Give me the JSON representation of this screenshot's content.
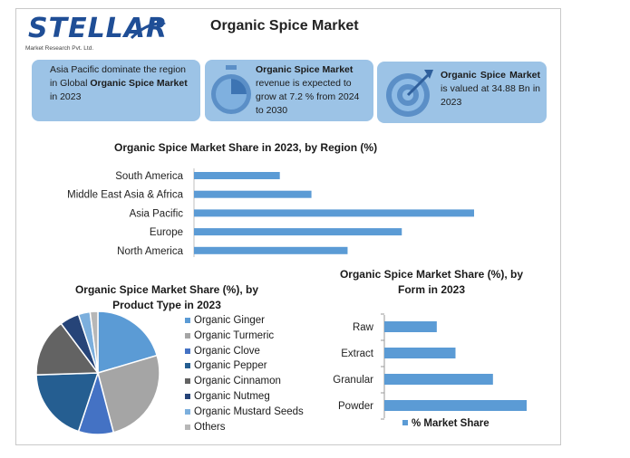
{
  "header": {
    "logo_word": "STELLAR",
    "logo_sub": "Market Research Pvt. Ltd.",
    "title": "Organic Spice Market"
  },
  "cards": [
    {
      "text_parts": [
        "Asia Pacific dominate the region in Global ",
        "Organic Spice Market",
        " in 2023"
      ],
      "icon": ""
    },
    {
      "text_parts": [
        "Organic Spice Market",
        " revenue is expected to grow at 7.2 % from 2024 to 2030"
      ],
      "icon": "stopwatch-icon"
    },
    {
      "text_parts": [
        "Organic Spice Market",
        " is valued at 34.88 Bn in 2023"
      ],
      "icon": "target-icon"
    }
  ],
  "colors": {
    "bar": "#5b9bd5",
    "card_bg": "#9cc3e6",
    "brand": "#1f4e96"
  },
  "chart_data": [
    {
      "type": "bar",
      "orientation": "horizontal",
      "title": "Organic Spice Market Share in 2023, by Region (%)",
      "categories": [
        "South America",
        "Middle East Asia & Africa",
        "Asia Pacific",
        "Europe",
        "North America"
      ],
      "values": [
        9.5,
        13,
        31,
        23,
        17
      ],
      "xlim": [
        0,
        35
      ],
      "grid": false,
      "axis": "hidden"
    },
    {
      "type": "pie",
      "title": "Organic Spice Market Share (%), by Product Type in 2023",
      "legend_position": "right",
      "labels": [
        "Organic Ginger",
        "Organic Turmeric",
        "Organic Clove",
        "Organic Pepper",
        "Organic Cinnamon",
        "Organic Nutmeg",
        "Organic Mustard Seeds",
        "Others"
      ],
      "values": [
        20,
        25,
        9,
        19,
        15,
        5,
        3,
        2
      ],
      "colors": [
        "#5b9bd5",
        "#a5a5a5",
        "#4472c4",
        "#255e91",
        "#636363",
        "#264478",
        "#7cafdd",
        "#b7b7b7"
      ]
    },
    {
      "type": "bar",
      "orientation": "horizontal",
      "title": "Organic Spice Market Share (%), by Form in 2023",
      "categories": [
        "Raw",
        "Extract",
        "Granular",
        "Powder"
      ],
      "values": [
        14,
        19,
        29,
        38
      ],
      "series_name": "% Market Share",
      "legend_position": "bottom",
      "xlim": [
        0,
        40
      ],
      "grid": false
    }
  ]
}
